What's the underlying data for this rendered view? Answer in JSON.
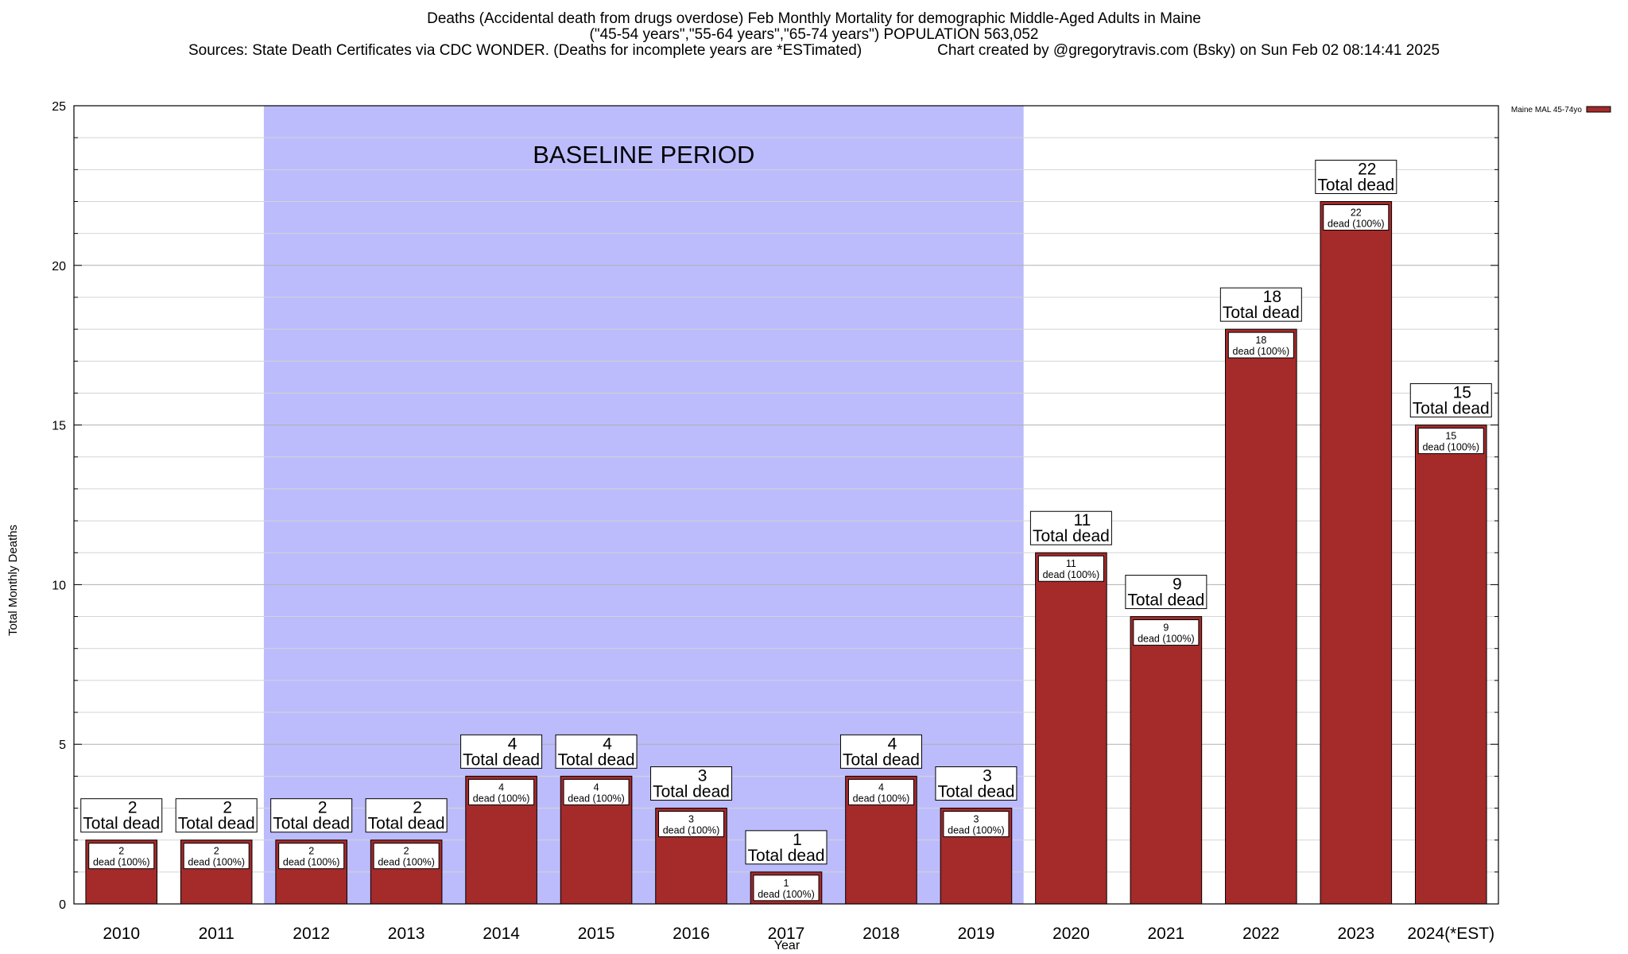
{
  "chart_data": {
    "type": "bar",
    "title_lines": [
      "Deaths (Accidental death from drugs overdose) Feb Monthly Mortality for demographic Middle-Aged Adults in Maine",
      "(\"45-54 years\",\"55-64 years\",\"65-74 years\") POPULATION 563,052",
      "Sources: State Death Certificates via CDC WONDER. (Deaths for incomplete years are *ESTimated)                  Chart created by @gregorytravis.com (Bsky) on Sun Feb 02 08:14:41 2025"
    ],
    "xlabel": "Year",
    "ylabel": "Total Monthly Deaths",
    "ylim": [
      0,
      25
    ],
    "yticks": [
      0,
      5,
      10,
      15,
      20,
      25
    ],
    "categories": [
      "2010",
      "2011",
      "2012",
      "2013",
      "2014",
      "2015",
      "2016",
      "2017",
      "2018",
      "2019",
      "2020",
      "2021",
      "2022",
      "2023",
      "2024(*EST)"
    ],
    "series": [
      {
        "name": "Maine MAL 45-74yo",
        "color": "#a52a2a",
        "values": [
          2,
          2,
          2,
          2,
          4,
          4,
          3,
          1,
          4,
          3,
          11,
          9,
          18,
          22,
          15
        ]
      }
    ],
    "top_label_text": "Total dead",
    "inner_label_text": "dead (100%)",
    "shaded_region": {
      "label": "BASELINE PERIOD",
      "from_category": "2012",
      "to_category": "2019",
      "color": "#bcbcfc"
    },
    "legend_position": "top-right",
    "grid": true
  }
}
